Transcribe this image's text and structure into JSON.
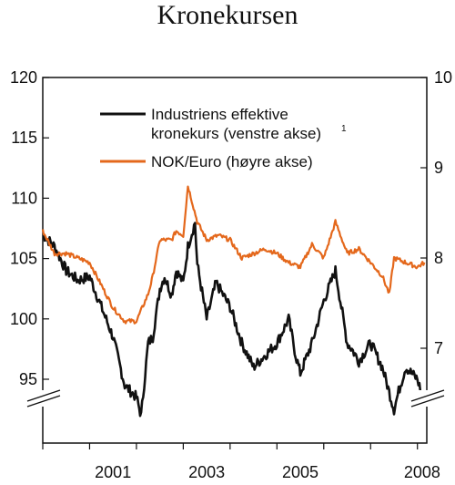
{
  "chart_data": {
    "type": "line",
    "title": "Kronekursen",
    "x_ticks": [
      "2001",
      "2003",
      "2005",
      "2008"
    ],
    "x_range": [
      2000,
      2008.2
    ],
    "y_left": {
      "ticks": [
        "120",
        "115",
        "110",
        "105",
        "100",
        "95"
      ],
      "range": [
        91.0,
        120
      ]
    },
    "y_right": {
      "ticks": [
        "10",
        "9",
        "8",
        "7"
      ],
      "range": [
        6.45,
        10
      ]
    },
    "legend_position": "top-right",
    "series": [
      {
        "name": "Industriens effektive kronekurs (venstre akse)",
        "footnote": "1",
        "axis": "left",
        "color": "#111111",
        "x": [
          2000.0,
          2000.25,
          2000.5,
          2000.75,
          2001.0,
          2001.25,
          2001.5,
          2001.75,
          2002.0,
          2002.1,
          2002.25,
          2002.35,
          2002.5,
          2002.6,
          2002.75,
          2002.85,
          2003.0,
          2003.1,
          2003.25,
          2003.3,
          2003.5,
          2003.7,
          2004.0,
          2004.25,
          2004.5,
          2004.75,
          2005.0,
          2005.25,
          2005.4,
          2005.5,
          2005.75,
          2006.0,
          2006.25,
          2006.5,
          2006.6,
          2006.75,
          2007.0,
          2007.25,
          2007.5,
          2007.6,
          2007.75,
          2008.0,
          2008.15
        ],
        "values": [
          107,
          106,
          104,
          103.2,
          103.5,
          101,
          98.5,
          94.5,
          93.5,
          92,
          98,
          98.5,
          102.5,
          103.5,
          102,
          104,
          103,
          106,
          108,
          104.5,
          100,
          103,
          101,
          98,
          96,
          97,
          98,
          100,
          97,
          95.5,
          98,
          101.5,
          104,
          98,
          97.5,
          96.5,
          98,
          96,
          92.5,
          94,
          96,
          95,
          93
        ]
      },
      {
        "name": "NOK/Euro (høyre akse)",
        "axis": "right",
        "color": "#e4681c",
        "x": [
          2000.0,
          2000.25,
          2000.5,
          2000.75,
          2001.0,
          2001.25,
          2001.5,
          2001.75,
          2002.0,
          2002.25,
          2002.35,
          2002.5,
          2002.75,
          2002.85,
          2003.0,
          2003.1,
          2003.2,
          2003.3,
          2003.5,
          2003.75,
          2004.0,
          2004.25,
          2004.5,
          2004.75,
          2005.0,
          2005.25,
          2005.5,
          2005.75,
          2006.0,
          2006.25,
          2006.5,
          2006.75,
          2007.0,
          2007.25,
          2007.4,
          2007.5,
          2007.75,
          2008.0,
          2008.15
        ],
        "values": [
          8.3,
          8.05,
          8.05,
          8.0,
          7.95,
          7.7,
          7.45,
          7.3,
          7.3,
          7.6,
          7.8,
          8.2,
          8.2,
          8.3,
          8.25,
          8.8,
          8.6,
          8.4,
          8.2,
          8.25,
          8.2,
          8.0,
          8.05,
          8.1,
          8.05,
          7.95,
          7.9,
          8.15,
          8.0,
          8.4,
          8.05,
          8.1,
          7.95,
          7.8,
          7.6,
          8.0,
          7.95,
          7.9,
          7.95
        ]
      }
    ]
  }
}
